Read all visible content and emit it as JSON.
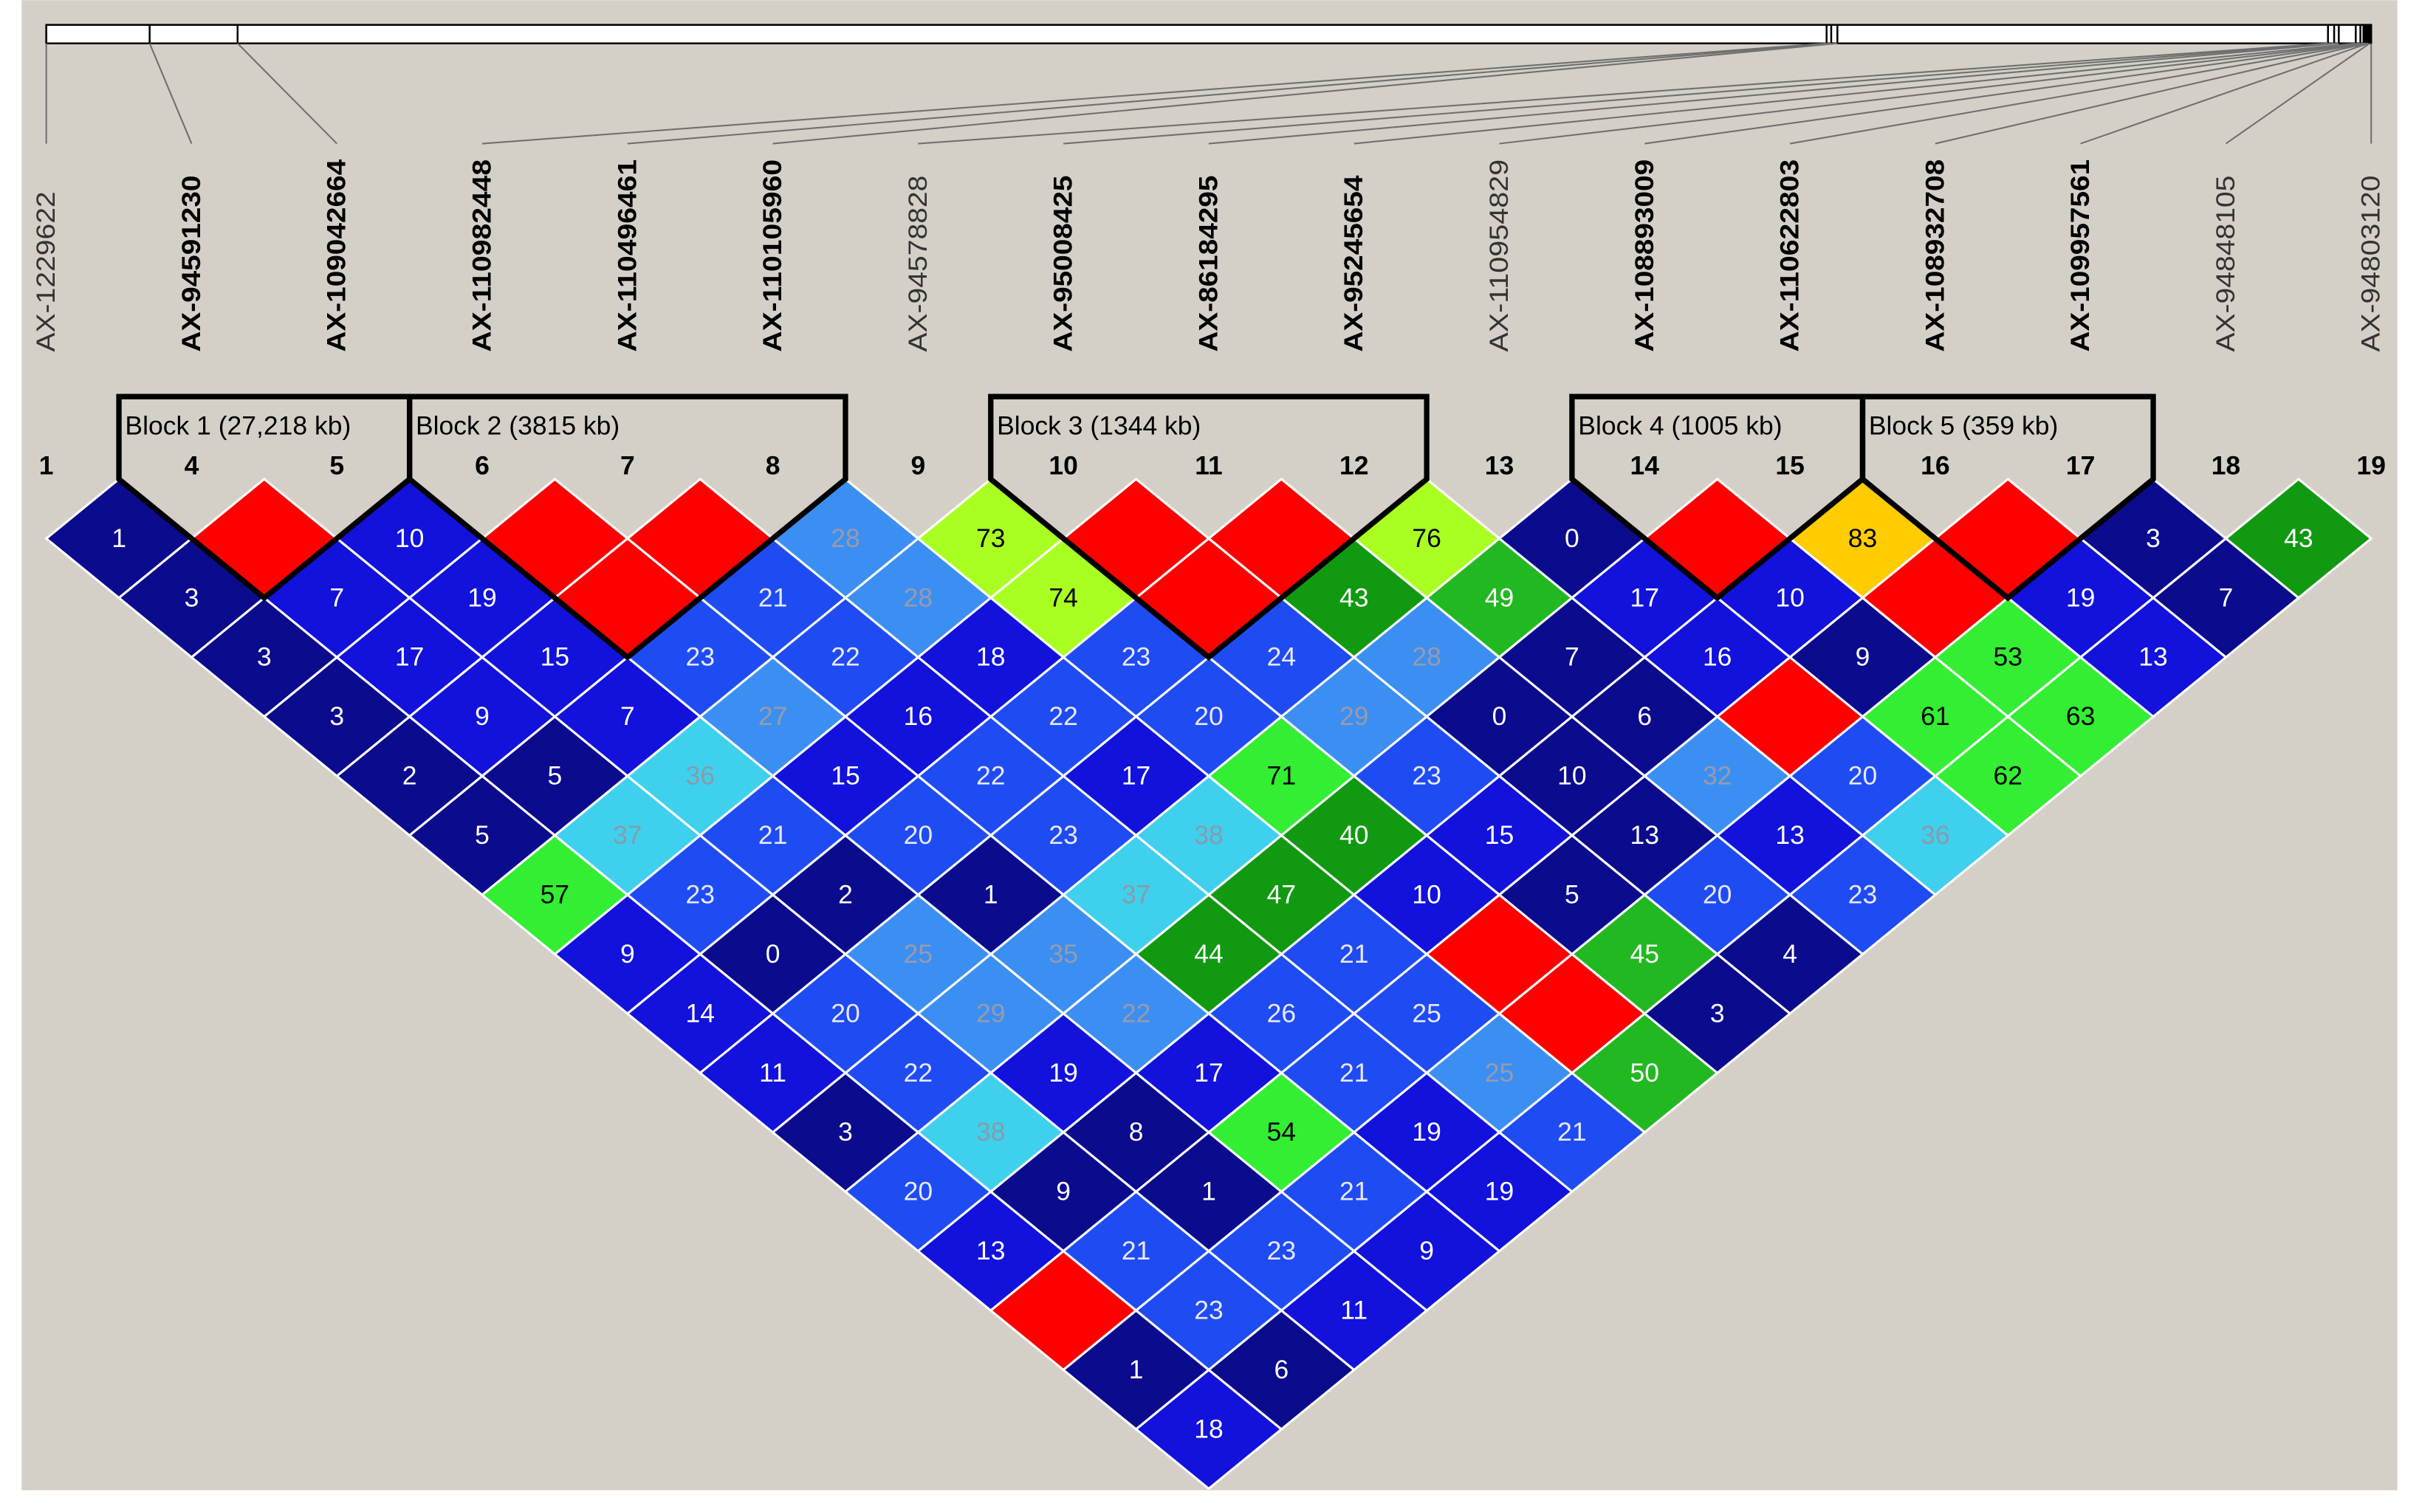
{
  "chart_data": {
    "type": "ld-heatmap",
    "markers": [
      {
        "number": 1,
        "name": "AX-1229622"
      },
      {
        "number": 4,
        "name": "AX-94591230"
      },
      {
        "number": 5,
        "name": "AX-109042664"
      },
      {
        "number": 6,
        "name": "AX-110982448"
      },
      {
        "number": 7,
        "name": "AX-110496461"
      },
      {
        "number": 8,
        "name": "AX-110105960"
      },
      {
        "number": 9,
        "name": "AX-94578828"
      },
      {
        "number": 10,
        "name": "AX-95008425"
      },
      {
        "number": 11,
        "name": "AX-86184295"
      },
      {
        "number": 12,
        "name": "AX-95245654"
      },
      {
        "number": 13,
        "name": "AX-110954829"
      },
      {
        "number": 14,
        "name": "AX-108893009"
      },
      {
        "number": 15,
        "name": "AX-110622803"
      },
      {
        "number": 16,
        "name": "AX-108932708"
      },
      {
        "number": 17,
        "name": "AX-109957561"
      },
      {
        "number": 18,
        "name": "AX-94848105"
      },
      {
        "number": 19,
        "name": "AX-94803120"
      }
    ],
    "blocks": [
      {
        "label": "Block 1 (27,218 kb)",
        "markers": [
          4,
          5
        ]
      },
      {
        "label": "Block 2 (3815 kb)",
        "markers": [
          6,
          8
        ]
      },
      {
        "label": "Block 3 (1344 kb)",
        "markers": [
          10,
          12
        ]
      },
      {
        "label": "Block 4 (1005 kb)",
        "markers": [
          14,
          15
        ]
      },
      {
        "label": "Block 5 (359 kb)",
        "markers": [
          16,
          17
        ]
      }
    ],
    "ld": [
      [
        {
          "value": 1,
          "color": "#0b0b8e"
        },
        {
          "value": null,
          "color": "#ff0000"
        },
        {
          "value": 10,
          "color": "#1212dc"
        },
        {
          "value": null,
          "color": "#ff0000"
        },
        {
          "value": null,
          "color": "#ff0000"
        },
        {
          "value": 28,
          "color": "#3b8ff2"
        },
        {
          "value": 73,
          "color": "#aaff22"
        },
        {
          "value": null,
          "color": "#ff0000"
        },
        {
          "value": null,
          "color": "#ff0000"
        },
        {
          "value": 76,
          "color": "#aaff22"
        },
        {
          "value": 0,
          "color": "#0b0b8e"
        },
        {
          "value": null,
          "color": "#ff0000"
        },
        {
          "value": 83,
          "color": "#ffcc00"
        },
        {
          "value": null,
          "color": "#ff0000"
        },
        {
          "value": 3,
          "color": "#0b0b8e"
        },
        {
          "value": 43,
          "color": "#119911"
        }
      ],
      [
        {
          "value": 3,
          "color": "#0b0b8e"
        },
        {
          "value": 7,
          "color": "#1212dc"
        },
        {
          "value": 19,
          "color": "#1212dc"
        },
        {
          "value": null,
          "color": "#ff0000"
        },
        {
          "value": 21,
          "color": "#1f4cf2"
        },
        {
          "value": 28,
          "color": "#3b8ff2"
        },
        {
          "value": 74,
          "color": "#aaff22"
        },
        {
          "value": null,
          "color": "#ff0000"
        },
        {
          "value": 43,
          "color": "#119911"
        },
        {
          "value": 49,
          "color": "#22b822"
        },
        {
          "value": 17,
          "color": "#1212dc"
        },
        {
          "value": 10,
          "color": "#1212dc"
        },
        {
          "value": null,
          "color": "#ff0000"
        },
        {
          "value": 19,
          "color": "#1212dc"
        },
        {
          "value": 7,
          "color": "#0b0b8e"
        }
      ],
      [
        {
          "value": 3,
          "color": "#0b0b8e"
        },
        {
          "value": 17,
          "color": "#1212dc"
        },
        {
          "value": 15,
          "color": "#1212dc"
        },
        {
          "value": 23,
          "color": "#1f4cf2"
        },
        {
          "value": 22,
          "color": "#1f4cf2"
        },
        {
          "value": 18,
          "color": "#1212dc"
        },
        {
          "value": 23,
          "color": "#1f4cf2"
        },
        {
          "value": 24,
          "color": "#1f4cf2"
        },
        {
          "value": 28,
          "color": "#3b8ff2"
        },
        {
          "value": 7,
          "color": "#0b0b8e"
        },
        {
          "value": 16,
          "color": "#1212dc"
        },
        {
          "value": 9,
          "color": "#0b0b8e"
        },
        {
          "value": 53,
          "color": "#33ee33"
        },
        {
          "value": 13,
          "color": "#1212dc"
        }
      ],
      [
        {
          "value": 3,
          "color": "#0b0b8e"
        },
        {
          "value": 9,
          "color": "#1212dc"
        },
        {
          "value": 7,
          "color": "#1212dc"
        },
        {
          "value": 27,
          "color": "#3b8ff2"
        },
        {
          "value": 16,
          "color": "#1212dc"
        },
        {
          "value": 22,
          "color": "#1f4cf2"
        },
        {
          "value": 20,
          "color": "#1f4cf2"
        },
        {
          "value": 29,
          "color": "#3b8ff2"
        },
        {
          "value": 0,
          "color": "#0b0b8e"
        },
        {
          "value": 6,
          "color": "#0b0b8e"
        },
        {
          "value": null,
          "color": "#ff0000"
        },
        {
          "value": 61,
          "color": "#33ee33"
        },
        {
          "value": 63,
          "color": "#33ee33"
        }
      ],
      [
        {
          "value": 2,
          "color": "#0b0b8e"
        },
        {
          "value": 5,
          "color": "#0b0b8e"
        },
        {
          "value": 36,
          "color": "#3fd0ee"
        },
        {
          "value": 15,
          "color": "#1212dc"
        },
        {
          "value": 22,
          "color": "#1f4cf2"
        },
        {
          "value": 17,
          "color": "#1212dc"
        },
        {
          "value": 71,
          "color": "#33ee33"
        },
        {
          "value": 23,
          "color": "#1f4cf2"
        },
        {
          "value": 10,
          "color": "#0b0b8e"
        },
        {
          "value": 32,
          "color": "#3b8ff2"
        },
        {
          "value": 20,
          "color": "#1f4cf2"
        },
        {
          "value": 62,
          "color": "#33ee33"
        }
      ],
      [
        {
          "value": 5,
          "color": "#0b0b8e"
        },
        {
          "value": 37,
          "color": "#3fd0ee"
        },
        {
          "value": 21,
          "color": "#1f4cf2"
        },
        {
          "value": 20,
          "color": "#1f4cf2"
        },
        {
          "value": 23,
          "color": "#1f4cf2"
        },
        {
          "value": 38,
          "color": "#3fd0ee"
        },
        {
          "value": 40,
          "color": "#119911"
        },
        {
          "value": 15,
          "color": "#1212dc"
        },
        {
          "value": 13,
          "color": "#0b0b8e"
        },
        {
          "value": 13,
          "color": "#1212dc"
        },
        {
          "value": 36,
          "color": "#3fd0ee"
        }
      ],
      [
        {
          "value": 57,
          "color": "#33ee33"
        },
        {
          "value": 23,
          "color": "#1f4cf2"
        },
        {
          "value": 2,
          "color": "#0b0b8e"
        },
        {
          "value": 1,
          "color": "#0b0b8e"
        },
        {
          "value": 37,
          "color": "#3fd0ee"
        },
        {
          "value": 47,
          "color": "#119911"
        },
        {
          "value": 10,
          "color": "#1212dc"
        },
        {
          "value": 5,
          "color": "#0b0b8e"
        },
        {
          "value": 20,
          "color": "#1f4cf2"
        },
        {
          "value": 23,
          "color": "#1f4cf2"
        }
      ],
      [
        {
          "value": 9,
          "color": "#1212dc"
        },
        {
          "value": 0,
          "color": "#0b0b8e"
        },
        {
          "value": 25,
          "color": "#3b8ff2"
        },
        {
          "value": 35,
          "color": "#3b8ff2"
        },
        {
          "value": 44,
          "color": "#119911"
        },
        {
          "value": 21,
          "color": "#1f4cf2"
        },
        {
          "value": null,
          "color": "#ff0000"
        },
        {
          "value": 45,
          "color": "#22b822"
        },
        {
          "value": 4,
          "color": "#0b0b8e"
        }
      ],
      [
        {
          "value": 14,
          "color": "#1212dc"
        },
        {
          "value": 20,
          "color": "#1f4cf2"
        },
        {
          "value": 29,
          "color": "#3b8ff2"
        },
        {
          "value": 22,
          "color": "#3b8ff2"
        },
        {
          "value": 26,
          "color": "#1f4cf2"
        },
        {
          "value": 25,
          "color": "#1f4cf2"
        },
        {
          "value": null,
          "color": "#ff0000"
        },
        {
          "value": 3,
          "color": "#0b0b8e"
        }
      ],
      [
        {
          "value": 11,
          "color": "#1212dc"
        },
        {
          "value": 22,
          "color": "#1f4cf2"
        },
        {
          "value": 19,
          "color": "#1212dc"
        },
        {
          "value": 17,
          "color": "#1212dc"
        },
        {
          "value": 21,
          "color": "#1f4cf2"
        },
        {
          "value": 25,
          "color": "#3b8ff2"
        },
        {
          "value": 50,
          "color": "#22b822"
        }
      ],
      [
        {
          "value": 3,
          "color": "#0b0b8e"
        },
        {
          "value": 38,
          "color": "#3fd0ee"
        },
        {
          "value": 8,
          "color": "#0b0b8e"
        },
        {
          "value": 54,
          "color": "#33ee33"
        },
        {
          "value": 19,
          "color": "#1212dc"
        },
        {
          "value": 21,
          "color": "#1f4cf2"
        }
      ],
      [
        {
          "value": 20,
          "color": "#1f4cf2"
        },
        {
          "value": 9,
          "color": "#0b0b8e"
        },
        {
          "value": 1,
          "color": "#0b0b8e"
        },
        {
          "value": 21,
          "color": "#1f4cf2"
        },
        {
          "value": 19,
          "color": "#1212dc"
        }
      ],
      [
        {
          "value": 13,
          "color": "#1212dc"
        },
        {
          "value": 21,
          "color": "#1f4cf2"
        },
        {
          "value": 23,
          "color": "#1f4cf2"
        },
        {
          "value": 9,
          "color": "#1212dc"
        }
      ],
      [
        {
          "value": null,
          "color": "#ff0000"
        },
        {
          "value": 23,
          "color": "#1f4cf2"
        },
        {
          "value": 11,
          "color": "#1212dc"
        }
      ],
      [
        {
          "value": 1,
          "color": "#0b0b8e"
        },
        {
          "value": 6,
          "color": "#0b0b8e"
        }
      ],
      [
        {
          "value": 18,
          "color": "#1212dc"
        }
      ]
    ]
  }
}
